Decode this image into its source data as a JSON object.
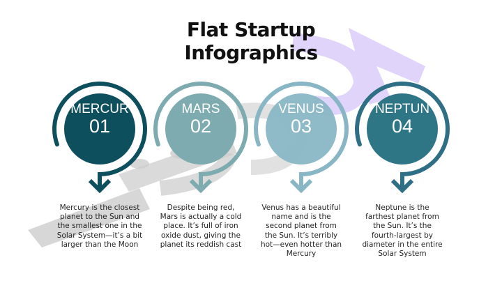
{
  "title_lines": [
    "Flat Startup",
    "Infographics"
  ],
  "colors": {
    "mercury": "#0d4f5c",
    "mars": "#7eabaf",
    "venus": "#89b6c4",
    "neptune": "#2e7686",
    "neptune_ring": "#2f6f86",
    "watermark_grey": "#c4c4c4",
    "watermark_lavender": "#ddd0fb"
  },
  "items": [
    {
      "name": "MERCUR",
      "number": "01",
      "lines": [
        "Mercury is the closest",
        "planet to the Sun and",
        "the smallest one in the",
        "Solar System—it’s a bit",
        "larger than the Moon"
      ]
    },
    {
      "name": "MARS",
      "number": "02",
      "lines": [
        "Despite being red,",
        "Mars is actually a cold",
        "place. It’s full of iron",
        "oxide dust, giving the",
        "planet its reddish cast"
      ]
    },
    {
      "name": "VENUS",
      "number": "03",
      "lines": [
        "Venus has a beautiful",
        "name and is the",
        "second planet from",
        "the Sun. It’s terribly",
        "hot—even hotter than",
        "Mercury"
      ]
    },
    {
      "name": "NEPTUN",
      "number": "04",
      "lines": [
        "Neptune is the",
        "farthest planet from",
        "the Sun. It’s the",
        "fourth-largest by",
        "diameter in the entire",
        "Solar System"
      ]
    }
  ]
}
